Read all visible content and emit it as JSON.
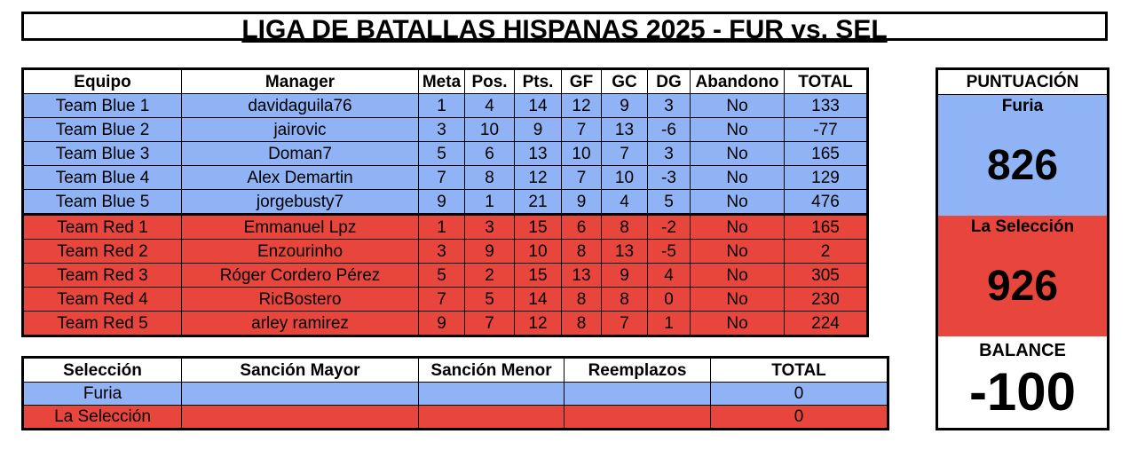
{
  "title": "LIGA DE BATALLAS HISPANAS 2025 - FUR vs. SEL",
  "main_table": {
    "headers": [
      "Equipo",
      "Manager",
      "Meta",
      "Pos.",
      "Pts.",
      "GF",
      "GC",
      "DG",
      "Abandono",
      "TOTAL"
    ],
    "rows": [
      [
        "Team Blue 1",
        "davidaguila76",
        "1",
        "4",
        "14",
        "12",
        "9",
        "3",
        "No",
        "133"
      ],
      [
        "Team Blue 2",
        "jairovic",
        "3",
        "10",
        "9",
        "7",
        "13",
        "-6",
        "No",
        "-77"
      ],
      [
        "Team Blue 3",
        "Doman7",
        "5",
        "6",
        "13",
        "10",
        "7",
        "3",
        "No",
        "165"
      ],
      [
        "Team Blue 4",
        "Alex Demartin",
        "7",
        "8",
        "12",
        "7",
        "10",
        "-3",
        "No",
        "129"
      ],
      [
        "Team Blue 5",
        "jorgebusty7",
        "9",
        "1",
        "21",
        "9",
        "4",
        "5",
        "No",
        "476"
      ],
      [
        "Team Red 1",
        "Emmanuel Lpz",
        "1",
        "3",
        "15",
        "6",
        "8",
        "-2",
        "No",
        "165"
      ],
      [
        "Team Red 2",
        "Enzourinho",
        "3",
        "9",
        "10",
        "8",
        "13",
        "-5",
        "No",
        "2"
      ],
      [
        "Team Red 3",
        "Róger Cordero Pérez",
        "5",
        "2",
        "15",
        "13",
        "9",
        "4",
        "No",
        "305"
      ],
      [
        "Team Red 4",
        "RicBostero",
        "7",
        "5",
        "14",
        "8",
        "8",
        "0",
        "No",
        "230"
      ],
      [
        "Team Red 5",
        "arley ramirez",
        "9",
        "7",
        "12",
        "8",
        "7",
        "1",
        "No",
        "224"
      ]
    ]
  },
  "penalty_table": {
    "headers": [
      "Selección",
      "Sanción Mayor",
      "Sanción Menor",
      "Reemplazos",
      "TOTAL"
    ],
    "rows": [
      [
        "Furia",
        "",
        "",
        "",
        "0"
      ],
      [
        "La Selección",
        "",
        "",
        "",
        "0"
      ]
    ]
  },
  "score_panel": {
    "heading": "PUNTUACIÓN",
    "team1_name": "Furia",
    "team1_score": "826",
    "team2_name": "La Selección",
    "team2_score": "926",
    "balance_label": "BALANCE",
    "balance_value": "-100"
  },
  "colors": {
    "blue": "#8fb3f5",
    "red": "#e8463c"
  }
}
